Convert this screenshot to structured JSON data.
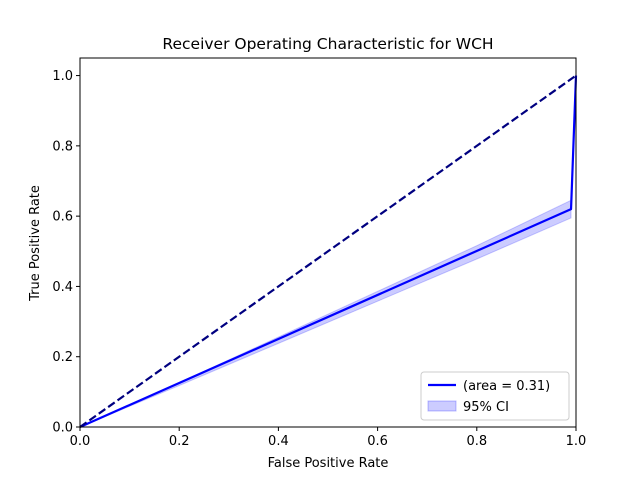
{
  "chart_data": {
    "type": "line",
    "title": "Receiver Operating Characteristic for WCH",
    "xlabel": "False Positive Rate",
    "ylabel": "True Positive Rate",
    "xlim": [
      0.0,
      1.0
    ],
    "ylim": [
      0.0,
      1.05
    ],
    "xticks": [
      0.0,
      0.2,
      0.4,
      0.6,
      0.8,
      1.0
    ],
    "yticks": [
      0.0,
      0.2,
      0.4,
      0.6,
      0.8,
      1.0
    ],
    "xtick_labels": [
      "0.0",
      "0.2",
      "0.4",
      "0.6",
      "0.8",
      "1.0"
    ],
    "ytick_labels": [
      "0.0",
      "0.2",
      "0.4",
      "0.6",
      "0.8",
      "1.0"
    ],
    "grid": false,
    "legend_position": "lower-right",
    "series": [
      {
        "name": " (area = 0.31)",
        "style": "solid",
        "color": "#0000ff",
        "x": [
          0.0,
          0.99,
          1.0
        ],
        "y": [
          0.0,
          0.62,
          1.0
        ]
      },
      {
        "style": "dashed",
        "color": "#000080",
        "x": [
          0.0,
          1.0
        ],
        "y": [
          0.0,
          1.0
        ]
      }
    ],
    "ci_band": {
      "name": "95% CI",
      "color": "#0000ff",
      "x": [
        0.0,
        0.2,
        0.4,
        0.6,
        0.8,
        0.99
      ],
      "lower": [
        0.0,
        0.118,
        0.238,
        0.358,
        0.478,
        0.595
      ],
      "upper": [
        0.0,
        0.126,
        0.256,
        0.386,
        0.516,
        0.645
      ]
    }
  }
}
